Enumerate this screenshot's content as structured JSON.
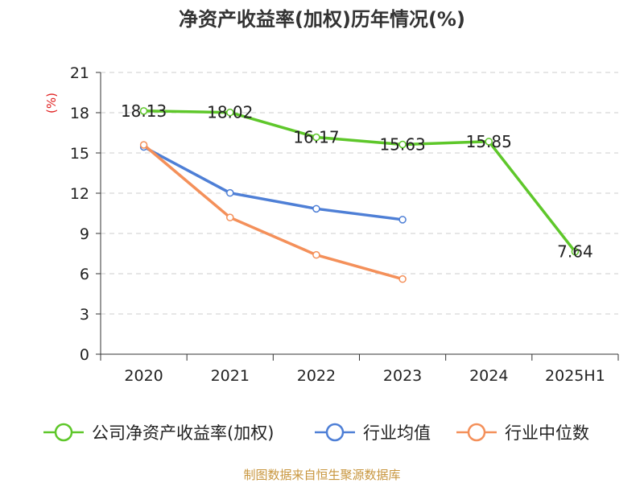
{
  "chart_data": {
    "type": "line",
    "title": "净资产收益率(加权)历年情况(%)",
    "y_unit_label": "(%)",
    "categories": [
      "2020",
      "2021",
      "2022",
      "2023",
      "2024",
      "2025H1"
    ],
    "ylim": [
      0,
      21
    ],
    "yticks": [
      0,
      3,
      6,
      9,
      12,
      15,
      18,
      21
    ],
    "grid": "horizontal dashed",
    "legend_position": "bottom",
    "series": [
      {
        "name": "公司净资产收益率(加权)",
        "color": "#5ec72a",
        "values": [
          18.13,
          18.02,
          16.17,
          15.63,
          15.85,
          7.64
        ],
        "data_labels": [
          "18.13",
          "18.02",
          "16.17",
          "15.63",
          "15.85",
          "7.64"
        ]
      },
      {
        "name": "行业均值",
        "color": "#4e7fd6",
        "values": [
          15.45,
          12.02,
          10.84,
          10.03,
          null,
          null
        ]
      },
      {
        "name": "行业中位数",
        "color": "#f4905a",
        "values": [
          15.6,
          10.19,
          7.4,
          5.6,
          null,
          null
        ]
      }
    ]
  },
  "source": "制图数据来自恒生聚源数据库"
}
